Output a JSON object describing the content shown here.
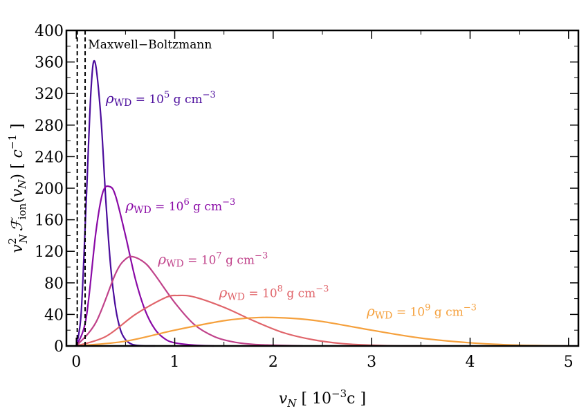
{
  "chart_data": {
    "type": "line",
    "xlabel": "v_N [ 10^-3 c ]",
    "ylabel": "v_N^2 F_ion(v_N) [ c^-1 ]",
    "xlim": [
      -0.1,
      5.1
    ],
    "ylim": [
      0,
      400
    ],
    "x_ticks": [
      "0",
      "1",
      "2",
      "3",
      "4",
      "5"
    ],
    "y_ticks": [
      "0",
      "40",
      "80",
      "120",
      "160",
      "200",
      "240",
      "280",
      "320",
      "360",
      "400"
    ],
    "grid": false,
    "series": [
      {
        "name": "ρ_WD = 10^5 g cm^-3",
        "color": "#4b0c9c",
        "x": [
          0.0,
          0.05,
          0.1,
          0.15,
          0.19,
          0.25,
          0.3,
          0.35,
          0.4,
          0.45,
          0.5,
          0.55,
          0.6,
          0.7,
          0.8
        ],
        "y": [
          0,
          42,
          180,
          325,
          360,
          290,
          185,
          100,
          48,
          20,
          8,
          3,
          1,
          0,
          0
        ]
      },
      {
        "name": "ρ_WD = 10^6 g cm^-3",
        "color": "#8a0aa6",
        "x": [
          0.0,
          0.1,
          0.2,
          0.27,
          0.34,
          0.4,
          0.5,
          0.6,
          0.7,
          0.8,
          0.9,
          1.0,
          1.2,
          1.4
        ],
        "y": [
          0,
          35,
          145,
          195,
          202,
          190,
          140,
          85,
          45,
          21,
          9,
          4,
          1,
          0
        ]
      },
      {
        "name": "ρ_WD = 10^7 g cm^-3",
        "color": "#c0428a",
        "x": [
          0.0,
          0.2,
          0.4,
          0.5,
          0.58,
          0.7,
          0.8,
          1.0,
          1.2,
          1.4,
          1.6,
          1.8,
          2.0,
          2.3
        ],
        "y": [
          0,
          30,
          92,
          110,
          113,
          105,
          90,
          55,
          27,
          12,
          5,
          2,
          1,
          0
        ]
      },
      {
        "name": "ρ_WD = 10^8 g cm^-3",
        "color": "#e0646a",
        "x": [
          0.0,
          0.3,
          0.6,
          0.9,
          1.03,
          1.2,
          1.5,
          1.8,
          2.1,
          2.4,
          2.7,
          3.0,
          3.3,
          3.7
        ],
        "y": [
          0,
          12,
          40,
          61,
          64,
          62,
          49,
          32,
          17,
          8,
          3,
          1,
          0,
          0
        ]
      },
      {
        "name": "ρ_WD = 10^9 g cm^-3",
        "color": "#f5a03c",
        "x": [
          0.0,
          0.5,
          1.0,
          1.5,
          1.85,
          2.2,
          2.5,
          3.0,
          3.5,
          4.0,
          4.5,
          5.0
        ],
        "y": [
          0,
          6,
          20,
          32,
          36,
          35,
          31,
          20,
          10,
          4,
          1,
          0
        ]
      }
    ],
    "annotations": [
      {
        "text": "Maxwell−Boltzmann"
      },
      {
        "text_base": "ρ",
        "text_sub": "WD",
        "text_mid": " = 10",
        "text_sup": "5",
        "text_unit": " g cm",
        "text_unit_sup": "−3"
      },
      {
        "text_base": "ρ",
        "text_sub": "WD",
        "text_mid": " = 10",
        "text_sup": "6",
        "text_unit": " g cm",
        "text_unit_sup": "−3"
      },
      {
        "text_base": "ρ",
        "text_sub": "WD",
        "text_mid": " = 10",
        "text_sup": "7",
        "text_unit": " g cm",
        "text_unit_sup": "−3"
      },
      {
        "text_base": "ρ",
        "text_sub": "WD",
        "text_mid": " = 10",
        "text_sup": "8",
        "text_unit": " g cm",
        "text_unit_sup": "−3"
      },
      {
        "text_base": "ρ",
        "text_sub": "WD",
        "text_mid": " = 10",
        "text_sup": "9",
        "text_unit": " g cm",
        "text_unit_sup": "−3"
      }
    ],
    "mb_lines_x": [
      0.01,
      0.09
    ]
  }
}
